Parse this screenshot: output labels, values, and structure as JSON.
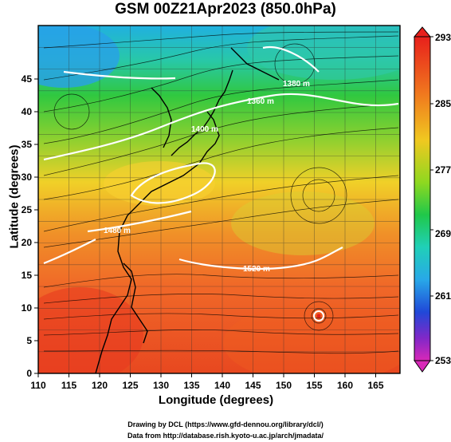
{
  "title": "GSM 00Z21Apr2023 (850.0hPa)",
  "xaxis": {
    "label": "Longitude (degrees)",
    "ticks": [
      "110",
      "115",
      "120",
      "125",
      "130",
      "135",
      "140",
      "145",
      "150",
      "155",
      "160",
      "165"
    ]
  },
  "yaxis": {
    "label": "Latitude  (degrees)",
    "ticks": [
      "0",
      "5",
      "10",
      "15",
      "20",
      "25",
      "30",
      "35",
      "40",
      "45"
    ]
  },
  "colorbar": {
    "ticks": [
      "293",
      "285",
      "277",
      "269",
      "261",
      "253"
    ]
  },
  "contour_labels": [
    "1360 m",
    "1480 m",
    "1520 m",
    "1400 m",
    "1380 m"
  ],
  "credits": {
    "line1": "Drawing by DCL (https://www.gfd-dennou.org/library/dcl/)",
    "line2": "Data from http://database.rish.kyoto-u.ac.jp/arch/jmadata/"
  }
}
